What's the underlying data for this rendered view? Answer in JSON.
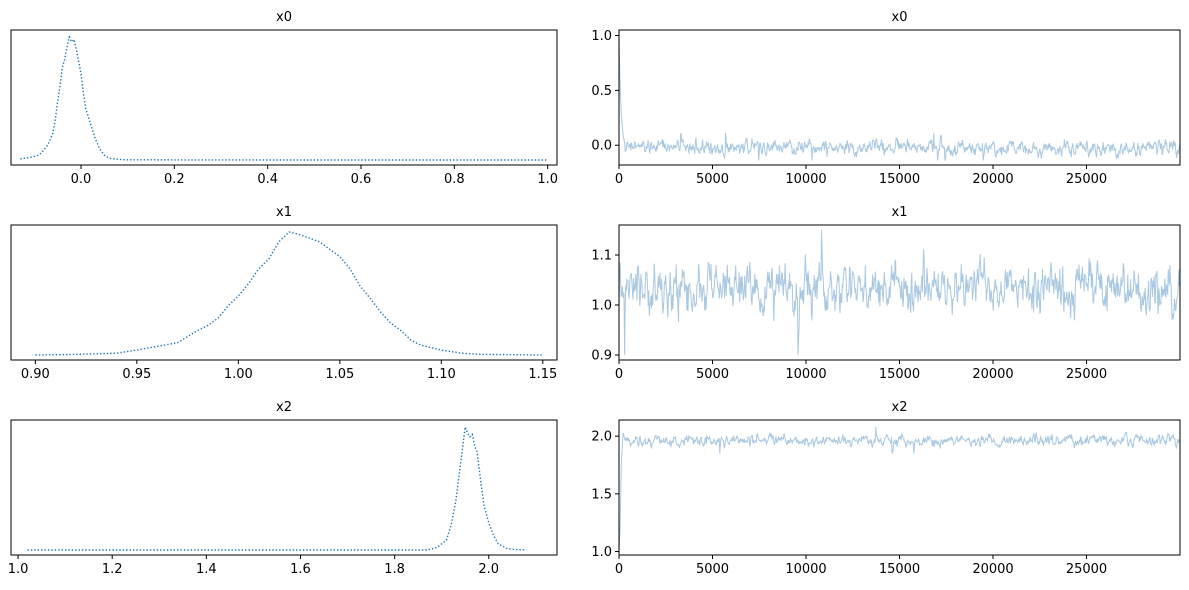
{
  "chart_data": [
    {
      "type": "line",
      "kind": "density",
      "title": "x0",
      "xlim": [
        -0.15,
        1.02
      ],
      "xticks": [
        0.0,
        0.2,
        0.4,
        0.6,
        0.8,
        1.0
      ],
      "xtick_labels": [
        "0.0",
        "0.2",
        "0.4",
        "0.6",
        "0.8",
        "1.0"
      ],
      "yticks_visible": false,
      "line_style": "dotted",
      "color": "#1f77b4",
      "x": [
        -0.13,
        -0.11,
        -0.09,
        -0.08,
        -0.07,
        -0.06,
        -0.055,
        -0.05,
        -0.045,
        -0.04,
        -0.035,
        -0.03,
        -0.025,
        -0.02,
        -0.015,
        -0.01,
        -0.005,
        0.0,
        0.005,
        0.01,
        0.02,
        0.03,
        0.04,
        0.05,
        0.06,
        0.08,
        0.1,
        0.2,
        0.4,
        0.6,
        0.8,
        1.0
      ],
      "y": [
        0.01,
        0.02,
        0.04,
        0.08,
        0.13,
        0.22,
        0.33,
        0.48,
        0.6,
        0.75,
        0.82,
        0.92,
        1.0,
        0.96,
        0.98,
        0.9,
        0.8,
        0.7,
        0.55,
        0.42,
        0.3,
        0.18,
        0.09,
        0.04,
        0.015,
        0.005,
        0.002,
        0.001,
        0.0,
        0.0,
        0.0,
        0.0
      ]
    },
    {
      "type": "line",
      "kind": "trace",
      "title": "x0",
      "xlim": [
        0,
        30000
      ],
      "ylim": [
        -0.18,
        1.05
      ],
      "xticks": [
        0,
        5000,
        10000,
        15000,
        20000,
        25000
      ],
      "xtick_labels": [
        "0",
        "5000",
        "10000",
        "15000",
        "20000",
        "25000"
      ],
      "yticks": [
        0.0,
        0.5,
        1.0
      ],
      "ytick_labels": [
        "0.0",
        "0.5",
        "1.0"
      ],
      "color": "#a9c8e2",
      "start": [
        [
          0,
          1.0
        ],
        [
          60,
          0.55
        ],
        [
          120,
          0.3
        ],
        [
          200,
          0.12
        ],
        [
          300,
          0.02
        ]
      ],
      "mean": -0.02,
      "spread": 0.05,
      "min": -0.14,
      "max": 0.11
    },
    {
      "type": "line",
      "kind": "density",
      "title": "x1",
      "xlim": [
        0.888,
        1.157
      ],
      "xticks": [
        0.9,
        0.95,
        1.0,
        1.05,
        1.1,
        1.15
      ],
      "xtick_labels": [
        "0.90",
        "0.95",
        "1.00",
        "1.05",
        "1.10",
        "1.15"
      ],
      "yticks_visible": false,
      "line_style": "dotted",
      "color": "#1f77b4",
      "x": [
        0.9,
        0.92,
        0.94,
        0.95,
        0.96,
        0.97,
        0.975,
        0.98,
        0.985,
        0.99,
        0.995,
        1.0,
        1.005,
        1.01,
        1.015,
        1.02,
        1.025,
        1.03,
        1.035,
        1.04,
        1.045,
        1.05,
        1.055,
        1.06,
        1.065,
        1.07,
        1.075,
        1.08,
        1.085,
        1.09,
        1.1,
        1.11,
        1.12,
        1.15
      ],
      "y": [
        0.0,
        0.005,
        0.015,
        0.04,
        0.07,
        0.1,
        0.15,
        0.2,
        0.24,
        0.3,
        0.4,
        0.48,
        0.58,
        0.7,
        0.78,
        0.92,
        1.0,
        0.98,
        0.95,
        0.92,
        0.86,
        0.8,
        0.7,
        0.56,
        0.46,
        0.35,
        0.26,
        0.2,
        0.12,
        0.08,
        0.04,
        0.015,
        0.005,
        0.0
      ]
    },
    {
      "type": "line",
      "kind": "trace",
      "title": "x1",
      "xlim": [
        0,
        30000
      ],
      "ylim": [
        0.89,
        1.16
      ],
      "xticks": [
        0,
        5000,
        10000,
        15000,
        20000,
        25000
      ],
      "xtick_labels": [
        "0",
        "5000",
        "10000",
        "15000",
        "20000",
        "25000"
      ],
      "yticks": [
        0.9,
        1.0,
        1.1
      ],
      "ytick_labels": [
        "0.9",
        "1.0",
        "1.1"
      ],
      "color": "#a9c8e2",
      "start": [
        [
          0,
          1.0
        ]
      ],
      "mean": 1.03,
      "spread": 0.035,
      "min": 0.9,
      "max": 1.15
    },
    {
      "type": "line",
      "kind": "density",
      "title": "x2",
      "xlim": [
        0.985,
        2.145
      ],
      "xticks": [
        1.0,
        1.2,
        1.4,
        1.6,
        1.8,
        2.0
      ],
      "xtick_labels": [
        "1.0",
        "1.2",
        "1.4",
        "1.6",
        "1.8",
        "2.0"
      ],
      "yticks_visible": false,
      "line_style": "dotted",
      "color": "#1f77b4",
      "x": [
        1.02,
        1.2,
        1.4,
        1.6,
        1.8,
        1.87,
        1.89,
        1.91,
        1.92,
        1.93,
        1.935,
        1.94,
        1.945,
        1.95,
        1.955,
        1.96,
        1.965,
        1.97,
        1.975,
        1.98,
        1.985,
        1.99,
        2.0,
        2.01,
        2.02,
        2.04,
        2.06,
        2.08
      ],
      "y": [
        0.0,
        0.0,
        0.0,
        0.0,
        0.0,
        0.0,
        0.02,
        0.08,
        0.2,
        0.4,
        0.55,
        0.7,
        0.85,
        1.0,
        0.95,
        0.92,
        0.94,
        0.85,
        0.8,
        0.65,
        0.5,
        0.36,
        0.22,
        0.12,
        0.05,
        0.01,
        0.003,
        0.0
      ]
    },
    {
      "type": "line",
      "kind": "trace",
      "title": "x2",
      "xlim": [
        0,
        30000
      ],
      "ylim": [
        0.97,
        2.14
      ],
      "xticks": [
        0,
        5000,
        10000,
        15000,
        20000,
        25000
      ],
      "xtick_labels": [
        "0",
        "5000",
        "10000",
        "15000",
        "20000",
        "25000"
      ],
      "yticks": [
        1.0,
        1.5,
        2.0
      ],
      "ytick_labels": [
        "1.0",
        "1.5",
        "2.0"
      ],
      "color": "#a9c8e2",
      "start": [
        [
          0,
          1.0
        ],
        [
          60,
          1.2
        ],
        [
          130,
          1.8
        ],
        [
          220,
          2.03
        ],
        [
          320,
          1.97
        ]
      ],
      "mean": 1.96,
      "spread": 0.035,
      "min": 1.85,
      "max": 2.08
    }
  ]
}
